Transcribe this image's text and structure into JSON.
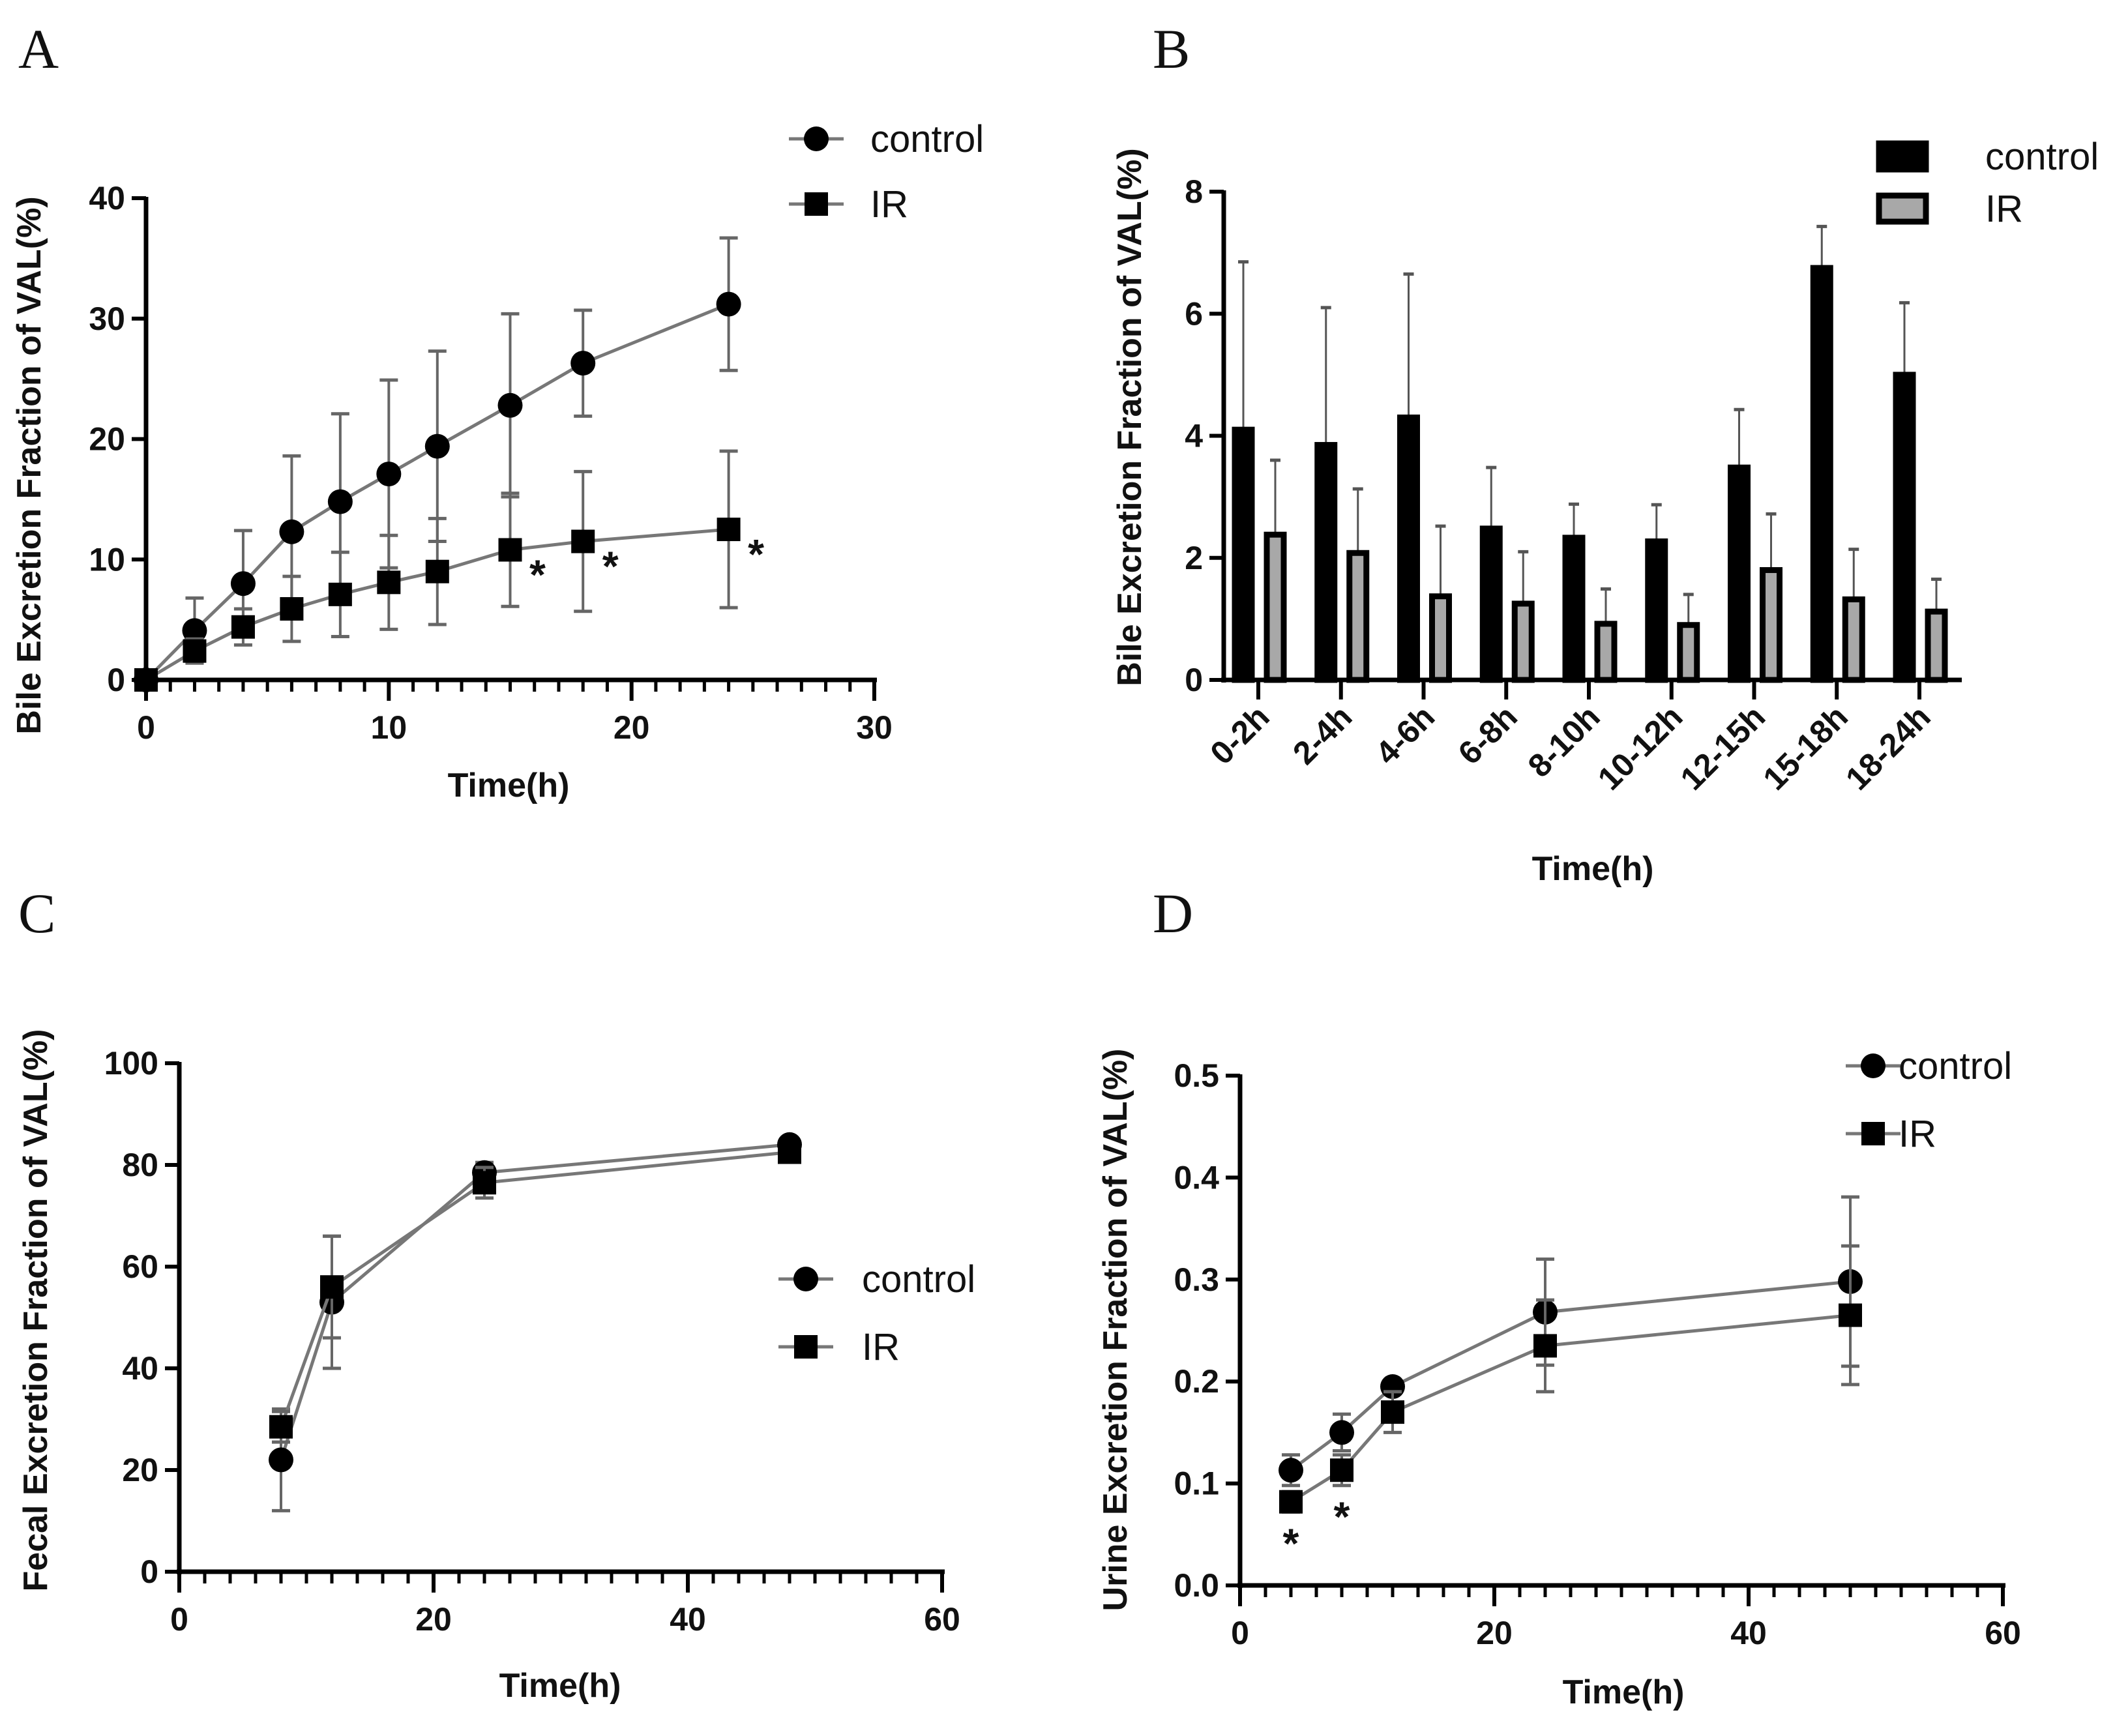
{
  "chart_data": [
    {
      "panel": "A",
      "type": "line",
      "title": "",
      "xlabel": "Time(h)",
      "ylabel": "Bile  Excretion Fraction of VAL(%)",
      "xlim": [
        0,
        30
      ],
      "ylim": [
        0,
        40
      ],
      "xticks": [
        0,
        10,
        20,
        30
      ],
      "yticks": [
        0,
        10,
        20,
        30,
        40
      ],
      "legend": "top-right",
      "series": [
        {
          "name": "control",
          "marker": "circle",
          "x": [
            0,
            2,
            4,
            6,
            8,
            10,
            12,
            15,
            18,
            24
          ],
          "y": [
            0,
            4.1,
            8.0,
            12.3,
            14.8,
            17.1,
            19.4,
            22.8,
            26.3,
            31.2
          ],
          "err": [
            0,
            2.7,
            4.4,
            6.3,
            7.3,
            7.8,
            7.9,
            7.6,
            4.4,
            5.5
          ]
        },
        {
          "name": "IR",
          "marker": "square",
          "x": [
            0,
            2,
            4,
            6,
            8,
            10,
            12,
            15,
            18,
            24
          ],
          "y": [
            0,
            2.4,
            4.4,
            5.9,
            7.1,
            8.1,
            9.0,
            10.8,
            11.5,
            12.5
          ],
          "err": [
            0,
            1.0,
            1.5,
            2.7,
            3.5,
            3.9,
            4.4,
            4.7,
            5.8,
            6.5
          ]
        }
      ],
      "annotations": [
        {
          "text": "*",
          "x": 15
        },
        {
          "text": "*",
          "x": 18
        },
        {
          "text": "*",
          "x": 24
        }
      ]
    },
    {
      "panel": "B",
      "type": "bar",
      "title": "",
      "xlabel": "Time(h)",
      "ylabel": "Bile  Excretion Fraction of VAL(%)",
      "ylim": [
        0,
        8
      ],
      "yticks": [
        0,
        2,
        4,
        6,
        8
      ],
      "legend": "top-right",
      "categories": [
        "0-2h",
        "2-4h",
        "4-6h",
        "6-8h",
        "8-10h",
        "10-12h",
        "12-15h",
        "15-18h",
        "18-24h"
      ],
      "series": [
        {
          "name": "control",
          "color": "#000000",
          "values": [
            4.1,
            3.85,
            4.3,
            2.48,
            2.33,
            2.27,
            3.48,
            6.75,
            5.0
          ],
          "err": [
            2.75,
            2.25,
            2.35,
            1.0,
            0.55,
            0.6,
            0.95,
            0.68,
            1.18
          ]
        },
        {
          "name": "IR",
          "color": "#a8a8a8",
          "values": [
            2.38,
            2.08,
            1.37,
            1.25,
            0.92,
            0.9,
            1.8,
            1.32,
            1.12
          ],
          "err": [
            1.22,
            1.05,
            1.15,
            0.85,
            0.57,
            0.5,
            0.92,
            0.82,
            0.53
          ]
        }
      ]
    },
    {
      "panel": "C",
      "type": "line",
      "title": "",
      "xlabel": "Time(h)",
      "ylabel": "Fecal Excretion Fraction of VAL(%)",
      "xlim": [
        0,
        60
      ],
      "ylim": [
        0,
        100
      ],
      "xticks": [
        0,
        20,
        40,
        60
      ],
      "yticks": [
        0,
        20,
        40,
        60,
        80,
        100
      ],
      "legend": "center-right",
      "series": [
        {
          "name": "control",
          "marker": "circle",
          "x": [
            8,
            12,
            24,
            48
          ],
          "y": [
            22,
            53,
            78.5,
            84
          ],
          "err": [
            10,
            13,
            2,
            1
          ]
        },
        {
          "name": "IR",
          "marker": "square",
          "x": [
            8,
            12,
            24,
            48
          ],
          "y": [
            28.5,
            56,
            76.5,
            82.5
          ],
          "err": [
            3,
            10,
            3,
            1
          ]
        }
      ],
      "annotations": []
    },
    {
      "panel": "D",
      "type": "line",
      "title": "",
      "xlabel": "Time(h)",
      "ylabel": "Urine Excretion Fraction of VAL(%)",
      "xlim": [
        0,
        60
      ],
      "ylim": [
        0,
        0.5
      ],
      "xticks": [
        0,
        20,
        40,
        60
      ],
      "yticks": [
        0.0,
        0.1,
        0.2,
        0.3,
        0.4,
        0.5
      ],
      "ytick_labels": [
        "0.0",
        "0.1",
        "0.2",
        "0.3",
        "0.4",
        "0.5"
      ],
      "legend": "top-right",
      "series": [
        {
          "name": "control",
          "marker": "circle",
          "x": [
            4,
            8,
            12,
            24,
            48
          ],
          "y": [
            0.113,
            0.15,
            0.195,
            0.268,
            0.298
          ],
          "err": [
            0.015,
            0.018,
            0.005,
            0.052,
            0.083
          ]
        },
        {
          "name": "IR",
          "marker": "square",
          "x": [
            4,
            8,
            12,
            24,
            48
          ],
          "y": [
            0.082,
            0.113,
            0.17,
            0.235,
            0.265
          ],
          "err": [
            0.01,
            0.015,
            0.02,
            0.045,
            0.068
          ]
        }
      ],
      "annotations": [
        {
          "text": "*",
          "x": 4
        },
        {
          "text": "*",
          "x": 8
        }
      ]
    }
  ]
}
